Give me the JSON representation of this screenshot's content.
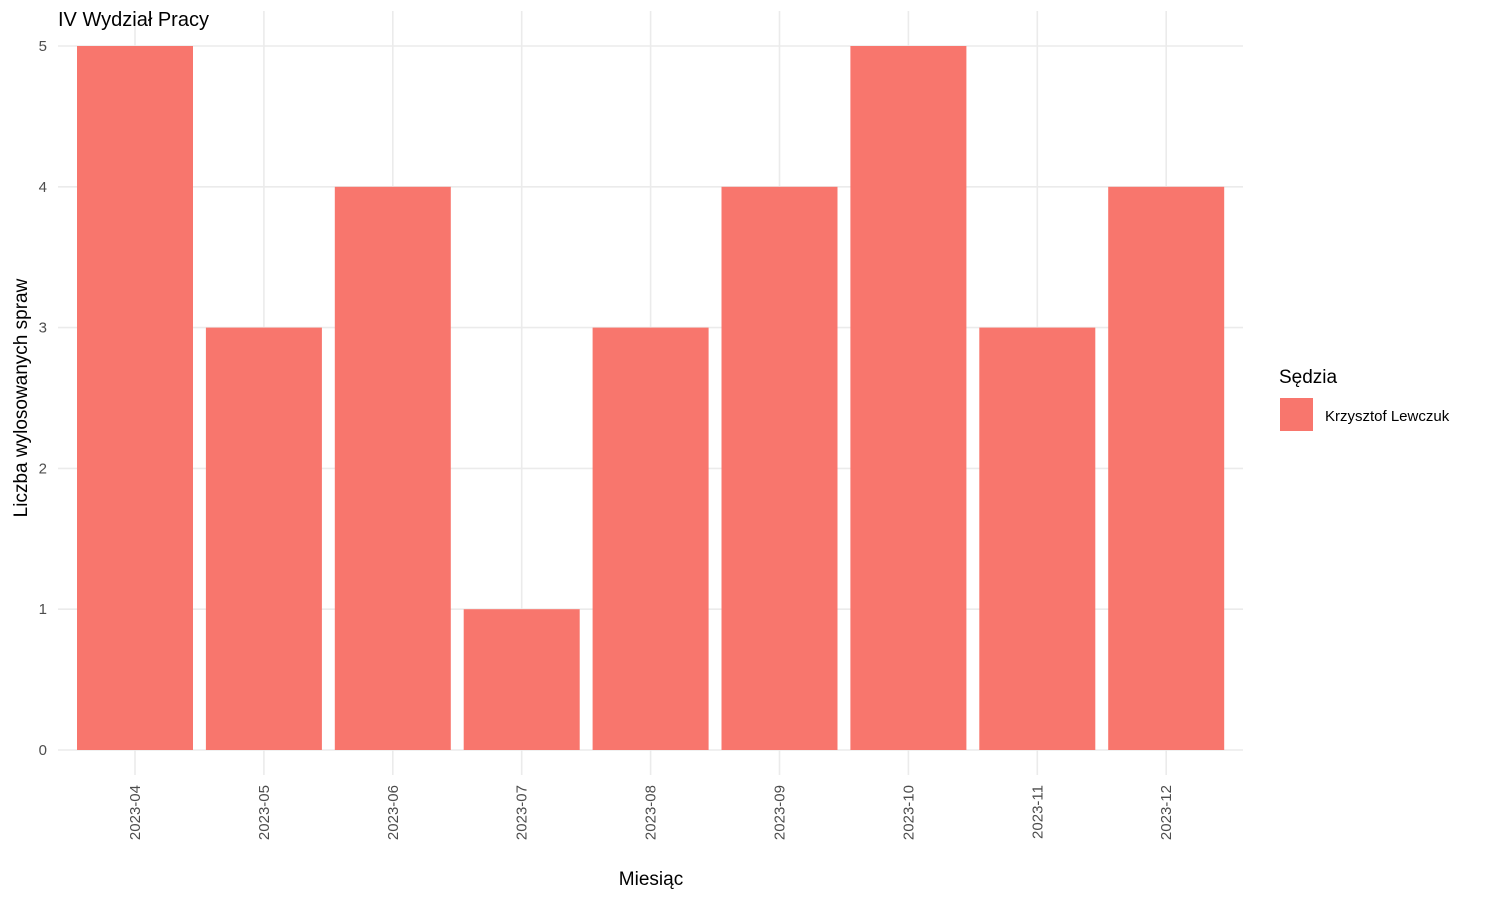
{
  "chart_data": {
    "type": "bar",
    "title": "IV Wydział Pracy",
    "xlabel": "Miesiąc",
    "ylabel": "Liczba wylosowanych spraw",
    "categories": [
      "2023-04",
      "2023-05",
      "2023-06",
      "2023-07",
      "2023-08",
      "2023-09",
      "2023-10",
      "2023-11",
      "2023-12"
    ],
    "series": [
      {
        "name": "Krzysztof Lewczuk",
        "values": [
          5,
          3,
          4,
          1,
          3,
          4,
          5,
          3,
          4
        ],
        "color": "#F8766D"
      }
    ],
    "ylim": [
      0,
      5
    ],
    "yticks": [
      0,
      1,
      2,
      3,
      4,
      5
    ],
    "grid": true,
    "legend": {
      "title": "Sędzia",
      "position": "right"
    }
  }
}
